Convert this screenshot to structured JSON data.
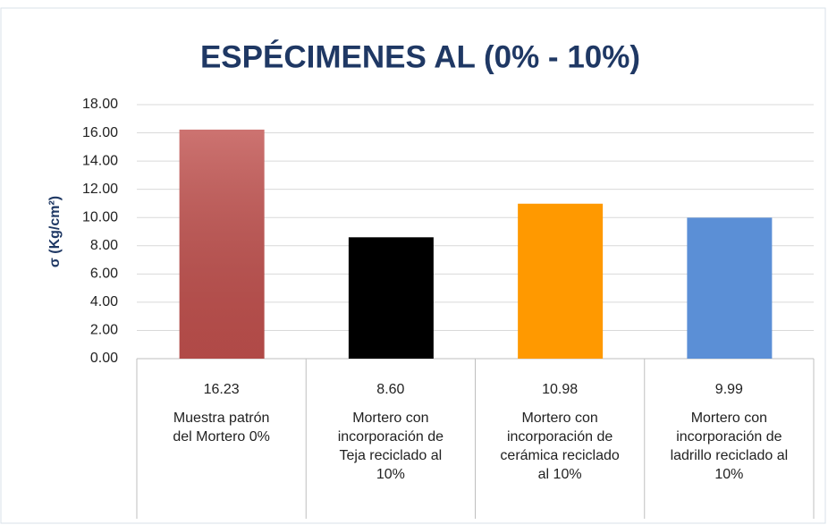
{
  "chart_data": {
    "type": "bar",
    "title": "ESPÉCIMENES AL (0% - 10%)",
    "y_label": "σ (Kg/cm²)",
    "categories": [
      "Muestra patrón\ndel Mortero 0%",
      "Mortero con\nincorporación de\nTeja reciclado al\n10%",
      "Mortero con\nincorporación de\ncerámica reciclado\nal 10%",
      "Mortero con\nincorporación de\nladrillo reciclado al\n10%"
    ],
    "values": [
      16.23,
      8.6,
      10.98,
      9.99
    ],
    "value_labels": [
      "16.23",
      "8.60",
      "10.98",
      "9.99"
    ],
    "colors": [
      "#c0504d",
      "#000000",
      "#ff9900",
      "#5b8fd6"
    ],
    "ylim": [
      0,
      18
    ],
    "yticks": [
      {
        "value": 0,
        "label": "0.00"
      },
      {
        "value": 2,
        "label": "2.00"
      },
      {
        "value": 4,
        "label": "4.00"
      },
      {
        "value": 6,
        "label": "6.00"
      },
      {
        "value": 8,
        "label": "8.00"
      },
      {
        "value": 10,
        "label": "10.00"
      },
      {
        "value": 12,
        "label": "12.00"
      },
      {
        "value": 14,
        "label": "14.00"
      },
      {
        "value": 16,
        "label": "16.00"
      },
      {
        "value": 18,
        "label": "18.00"
      }
    ],
    "grid": true
  }
}
